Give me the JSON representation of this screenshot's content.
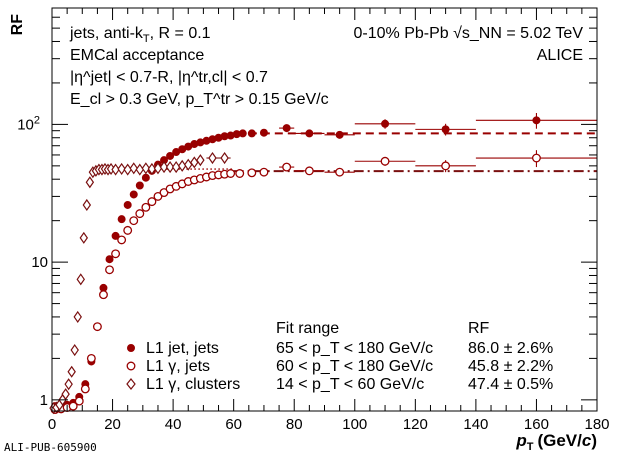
{
  "chart_data": {
    "type": "scatter",
    "xlabel_base": "p",
    "xlabel_sub": "T",
    "xlabel_unit": "(GeV/",
    "xlabel_unit_c": "c",
    "xlabel_unit_close": ")",
    "ylabel": "RF",
    "xlim": [
      0,
      180
    ],
    "ylim": [
      0.83,
      700
    ],
    "yscale": "log",
    "x_ticks": [
      0,
      20,
      40,
      60,
      80,
      100,
      120,
      140,
      160,
      180
    ],
    "y_ticks": [
      {
        "value": 1,
        "label": "1"
      },
      {
        "value": 10,
        "label": "10"
      },
      {
        "value": 100,
        "label": "10",
        "exp": "2"
      }
    ],
    "grid": false,
    "colors": {
      "series1": "#990000",
      "series2": "#990000",
      "series3": "#7a1010",
      "fit1": "#990000",
      "fit2": "#7a1010"
    },
    "annotations": {
      "left_line1": "jets, anti-k",
      "left_line1_sub": "T",
      "left_line1_rest": ", R = 0.1",
      "left_line2": "EMCal acceptance",
      "left_line3": "|η^jet| < 0.7-R, |η^tr,cl| < 0.7",
      "left_line4": "E_cl > 0.3 GeV, p_T^tr > 0.15 GeV/c",
      "right_line1": "0-10% Pb-Pb  √s_NN = 5.02 TeV",
      "right_line2": "ALICE"
    },
    "legend": {
      "header_fit": "Fit range",
      "header_rf": "RF",
      "entries": [
        {
          "marker": "filled-circle",
          "label": "L1 jet, jets",
          "fit_range": "65 < p_T < 180 GeV/c",
          "rf": "86.0 ± 2.6%"
        },
        {
          "marker": "open-circle",
          "label": "L1 γ, jets",
          "fit_range": "60 < p_T < 180 GeV/c",
          "rf": "45.8 ± 2.2%"
        },
        {
          "marker": "open-diamond",
          "label": "L1 γ, clusters",
          "fit_range": "14 < p_T < 60 GeV/c",
          "rf": "47.4 ± 0.5%"
        }
      ]
    },
    "series": [
      {
        "name": "L1 jet, jets",
        "marker": "filled-circle",
        "points": [
          [
            1,
            0.9
          ],
          [
            3,
            0.9
          ],
          [
            5,
            0.92
          ],
          [
            7,
            0.95
          ],
          [
            9,
            1.05
          ],
          [
            11,
            1.3
          ],
          [
            13,
            1.9
          ],
          [
            15,
            3.4
          ],
          [
            17,
            6.5
          ],
          [
            19,
            10.5
          ],
          [
            21,
            15.5
          ],
          [
            23,
            20.5
          ],
          [
            25,
            26
          ],
          [
            27,
            31
          ],
          [
            29,
            36
          ],
          [
            31,
            41
          ],
          [
            33,
            46
          ],
          [
            35,
            51
          ],
          [
            37,
            55
          ],
          [
            39,
            59
          ],
          [
            41,
            63
          ],
          [
            43,
            66
          ],
          [
            45,
            69
          ],
          [
            47,
            72
          ],
          [
            49,
            74
          ],
          [
            51,
            76
          ],
          [
            53,
            78
          ],
          [
            55,
            80
          ],
          [
            57,
            82
          ],
          [
            59,
            83
          ],
          [
            61,
            85
          ],
          [
            63,
            86
          ],
          [
            66,
            86
          ],
          [
            70,
            87
          ],
          [
            77.5,
            94
          ],
          [
            85,
            86
          ],
          [
            95,
            84
          ],
          [
            110,
            101
          ],
          [
            130,
            92
          ],
          [
            160,
            107
          ]
        ],
        "xerr": [
          [
            77.5,
            2.5
          ],
          [
            85,
            5
          ],
          [
            95,
            5
          ],
          [
            110,
            10
          ],
          [
            130,
            10
          ],
          [
            160,
            20
          ]
        ],
        "yerr": [
          [
            77.5,
            6
          ],
          [
            85,
            5
          ],
          [
            95,
            5
          ],
          [
            110,
            8
          ],
          [
            130,
            9
          ],
          [
            160,
            14
          ]
        ]
      },
      {
        "name": "L1 γ, jets",
        "marker": "open-circle",
        "points": [
          [
            1,
            0.85
          ],
          [
            3,
            0.86
          ],
          [
            5,
            0.88
          ],
          [
            7,
            0.9
          ],
          [
            9,
            0.98
          ],
          [
            11,
            1.2
          ],
          [
            13,
            2.0
          ],
          [
            15,
            3.4
          ],
          [
            17,
            5.8
          ],
          [
            19,
            8.8
          ],
          [
            21,
            11.5
          ],
          [
            23,
            14.5
          ],
          [
            25,
            17
          ],
          [
            27,
            20
          ],
          [
            29,
            22.5
          ],
          [
            31,
            25
          ],
          [
            33,
            27.5
          ],
          [
            35,
            30
          ],
          [
            37,
            32
          ],
          [
            39,
            34
          ],
          [
            41,
            35.5
          ],
          [
            43,
            37
          ],
          [
            45,
            38.5
          ],
          [
            47,
            39.5
          ],
          [
            49,
            40.5
          ],
          [
            51,
            41.5
          ],
          [
            53,
            42.5
          ],
          [
            55,
            43
          ],
          [
            57,
            43.5
          ],
          [
            59,
            44
          ],
          [
            62,
            44
          ],
          [
            66,
            44.5
          ],
          [
            70,
            45
          ],
          [
            77.5,
            49
          ],
          [
            85,
            46
          ],
          [
            95,
            45
          ],
          [
            110,
            54
          ],
          [
            130,
            50
          ],
          [
            160,
            57
          ]
        ],
        "xerr": [
          [
            77.5,
            2.5
          ],
          [
            85,
            5
          ],
          [
            95,
            5
          ],
          [
            110,
            10
          ],
          [
            130,
            10
          ],
          [
            160,
            20
          ]
        ],
        "yerr": [
          [
            77.5,
            3
          ],
          [
            85,
            2
          ],
          [
            95,
            2
          ],
          [
            110,
            4
          ],
          [
            130,
            5
          ],
          [
            160,
            8
          ]
        ]
      },
      {
        "name": "L1 γ, clusters",
        "marker": "open-diamond",
        "points": [
          [
            0.5,
            0.87
          ],
          [
            1.5,
            0.88
          ],
          [
            2.5,
            0.92
          ],
          [
            3.5,
            1.0
          ],
          [
            4.5,
            1.1
          ],
          [
            5.5,
            1.3
          ],
          [
            6.5,
            1.6
          ],
          [
            7.5,
            2.3
          ],
          [
            8.5,
            4.0
          ],
          [
            9.5,
            7.5
          ],
          [
            10.5,
            15
          ],
          [
            11.5,
            26
          ],
          [
            12.5,
            38
          ],
          [
            13.5,
            45
          ],
          [
            14.5,
            46
          ],
          [
            15.5,
            47
          ],
          [
            16.5,
            47
          ],
          [
            17.5,
            47.5
          ],
          [
            18.5,
            47
          ],
          [
            19.5,
            47.5
          ],
          [
            21,
            47
          ],
          [
            23,
            47.5
          ],
          [
            25,
            47
          ],
          [
            27,
            48
          ],
          [
            29,
            47
          ],
          [
            31,
            48
          ],
          [
            33,
            47.5
          ],
          [
            35,
            48
          ],
          [
            37,
            49
          ],
          [
            39,
            49
          ],
          [
            41,
            49
          ],
          [
            43,
            50
          ],
          [
            45,
            51
          ],
          [
            47,
            53
          ],
          [
            49,
            55
          ],
          [
            53,
            57
          ],
          [
            57,
            57
          ]
        ],
        "xerr": [
          [
            53,
            2
          ],
          [
            57,
            2
          ]
        ],
        "yerr": []
      }
    ],
    "fits": [
      {
        "value": 86.0,
        "from": 65,
        "to": 180,
        "style": "dashed"
      },
      {
        "value": 45.8,
        "from": 60,
        "to": 180,
        "style": "dashdot"
      },
      {
        "value": 47.4,
        "from": 14,
        "to": 60,
        "style": "dotted"
      }
    ]
  },
  "footer": {
    "pub_id": "ALI-PUB-605900"
  }
}
